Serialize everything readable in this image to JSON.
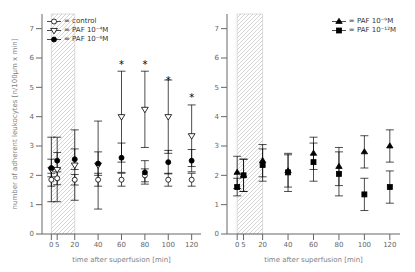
{
  "chart_data": [
    {
      "type": "scatter",
      "xlabel": "time after superfusion [min]",
      "ylabel": "number of adherent leukocytes [n/100μm x min]",
      "x": [
        0,
        5,
        20,
        40,
        60,
        80,
        100,
        120
      ],
      "xlim": [
        -8,
        128
      ],
      "xticks": [
        0,
        5,
        20,
        40,
        60,
        80,
        100,
        120
      ],
      "ylim": [
        0,
        7.5
      ],
      "yticks": [
        0,
        1,
        2,
        3,
        4,
        5,
        6,
        7
      ],
      "legend": "upper left",
      "shaded_span": [
        0,
        20
      ],
      "series": [
        {
          "name": "= control",
          "color": "#000000",
          "marker": "circle-open",
          "values": [
            1.85,
            1.9,
            1.85,
            1.85,
            1.85,
            2.0,
            1.85,
            1.85
          ],
          "errors": [
            0.22,
            0.22,
            0.18,
            0.22,
            0.22,
            0.22,
            0.22,
            0.22
          ]
        },
        {
          "name": "= PAF 10⁻⁴M",
          "color": "#000000",
          "marker": "triangle-down-open",
          "values": [
            2.2,
            2.2,
            2.35,
            2.35,
            4.0,
            4.25,
            4.0,
            3.35
          ],
          "errors": [
            1.1,
            1.1,
            1.2,
            1.5,
            1.55,
            1.3,
            1.25,
            1.05
          ]
        },
        {
          "name": "= PAF 10⁻⁶M",
          "color": "#000000",
          "marker": "circle",
          "values": [
            2.25,
            2.5,
            2.55,
            2.4,
            2.6,
            2.1,
            2.45,
            2.5
          ],
          "errors": [
            0.3,
            0.28,
            0.35,
            0.4,
            0.5,
            0.4,
            0.4,
            0.38
          ]
        }
      ],
      "annotations": [
        {
          "x": 60,
          "y": 5.65,
          "text": "*"
        },
        {
          "x": 80,
          "y": 5.65,
          "text": "*"
        },
        {
          "x": 100,
          "y": 5.1,
          "text": "*"
        },
        {
          "x": 120,
          "y": 4.55,
          "text": "*"
        }
      ]
    },
    {
      "type": "scatter",
      "xlabel": "time after superfusion [min]",
      "x": [
        0,
        5,
        20,
        40,
        60,
        80,
        100,
        120
      ],
      "xlim": [
        -8,
        128
      ],
      "xticks": [
        0,
        5,
        20,
        40,
        60,
        80,
        100,
        120
      ],
      "ylim": [
        0,
        7.5
      ],
      "yticks": [
        0,
        1,
        2,
        3,
        4,
        5,
        6,
        7
      ],
      "legend": "upper right",
      "shaded_span": [
        0,
        20
      ],
      "series": [
        {
          "name": "= PAF 10⁻⁹M",
          "color": "#000000",
          "marker": "triangle",
          "values": [
            2.1,
            2.0,
            2.5,
            2.15,
            2.75,
            2.3,
            2.8,
            3.0
          ],
          "errors": [
            0.55,
            0.55,
            0.55,
            0.55,
            0.55,
            0.65,
            0.55,
            0.55
          ]
        },
        {
          "name": "= PAF 10⁻¹²M",
          "color": "#000000",
          "marker": "square",
          "values": [
            1.6,
            2.0,
            2.35,
            2.1,
            2.45,
            2.05,
            1.35,
            1.6
          ],
          "errors": [
            0.3,
            0.55,
            0.55,
            0.65,
            0.65,
            0.75,
            0.55,
            0.55
          ]
        }
      ]
    }
  ]
}
